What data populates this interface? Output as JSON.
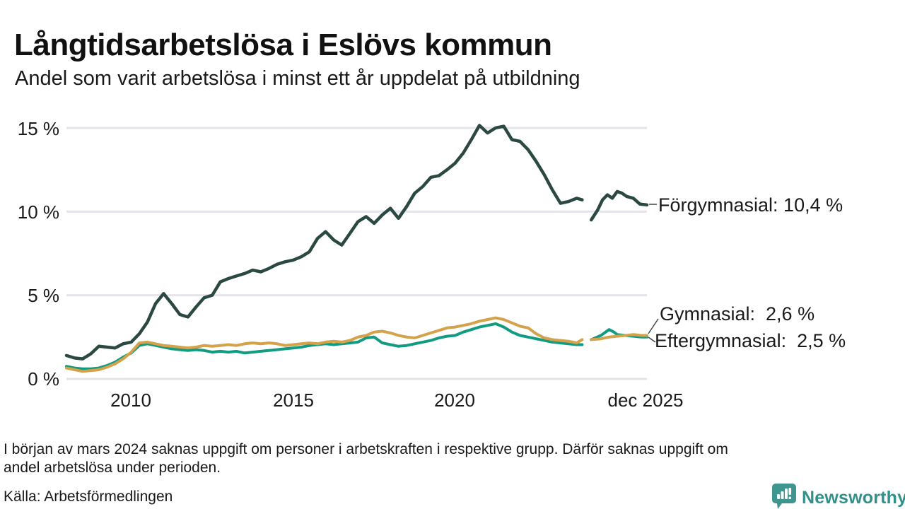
{
  "header": {
    "title": "Långtidsarbetslösa i Eslövs kommun",
    "subtitle": "Andel som varit arbetslösa i minst ett år uppdelat på utbildning"
  },
  "footer": {
    "note_line1": "I början av mars 2024 saknas uppgift om personer i arbetskraften i respektive grupp. Därför saknas uppgift om",
    "note_line2": "andel arbetslösa under perioden.",
    "source": "Källa: Arbetsförmedlingen"
  },
  "logo": {
    "name": "Newsworthy",
    "icon": "bar-chart-pin-icon",
    "icon_color": "#3f968f",
    "text_color": "#31908a"
  },
  "colors": {
    "background": "#ffffff",
    "text": "#1a1a1a",
    "gridline": "#e4e4ea",
    "connector": "#444444"
  },
  "chart_data": {
    "type": "line",
    "title": "Långtidsarbetslösa i Eslövs kommun",
    "subtitle": "Andel som varit arbetslösa i minst ett år uppdelat på utbildning",
    "xlabel": "",
    "ylabel": "",
    "xlim": [
      2008,
      2025.92
    ],
    "ylim": [
      0,
      16
    ],
    "grid": "horizontal",
    "legend_position": "end-of-line-labels",
    "gridline_color": "#e4e4ea",
    "yticks": [
      {
        "value": 15,
        "label": "15 %"
      },
      {
        "value": 10,
        "label": "10 %"
      },
      {
        "value": 5,
        "label": "5 %"
      },
      {
        "value": 0,
        "label": "0 %"
      }
    ],
    "xticks": [
      {
        "value": 2010,
        "label": "2010"
      },
      {
        "value": 2015,
        "label": "2015"
      },
      {
        "value": 2020,
        "label": "2020"
      },
      {
        "value": 2025.92,
        "label": "dec 2025"
      }
    ],
    "data_gap": {
      "from": 2023.95,
      "to": 2024.18,
      "reason": "uppgift saknas mars 2024"
    },
    "series": [
      {
        "id": "forgymnasial",
        "name": "Förgymnasial",
        "end_label": "Förgymnasial: 10,4 %",
        "end_value": 10.4,
        "color": "#2b4942",
        "width": 4.5,
        "points": [
          [
            2008.0,
            1.4
          ],
          [
            2008.25,
            1.25
          ],
          [
            2008.5,
            1.2
          ],
          [
            2008.75,
            1.5
          ],
          [
            2009.0,
            1.95
          ],
          [
            2009.25,
            1.9
          ],
          [
            2009.5,
            1.85
          ],
          [
            2009.75,
            2.1
          ],
          [
            2010.0,
            2.2
          ],
          [
            2010.25,
            2.7
          ],
          [
            2010.5,
            3.4
          ],
          [
            2010.75,
            4.5
          ],
          [
            2011.0,
            5.1
          ],
          [
            2011.25,
            4.5
          ],
          [
            2011.5,
            3.85
          ],
          [
            2011.75,
            3.7
          ],
          [
            2012.0,
            4.3
          ],
          [
            2012.25,
            4.85
          ],
          [
            2012.5,
            5.0
          ],
          [
            2012.75,
            5.8
          ],
          [
            2013.0,
            6.0
          ],
          [
            2013.25,
            6.15
          ],
          [
            2013.5,
            6.3
          ],
          [
            2013.75,
            6.5
          ],
          [
            2014.0,
            6.4
          ],
          [
            2014.25,
            6.6
          ],
          [
            2014.5,
            6.85
          ],
          [
            2014.75,
            7.0
          ],
          [
            2015.0,
            7.1
          ],
          [
            2015.25,
            7.3
          ],
          [
            2015.5,
            7.6
          ],
          [
            2015.75,
            8.4
          ],
          [
            2016.0,
            8.8
          ],
          [
            2016.25,
            8.3
          ],
          [
            2016.5,
            8.0
          ],
          [
            2016.75,
            8.7
          ],
          [
            2017.0,
            9.4
          ],
          [
            2017.25,
            9.7
          ],
          [
            2017.5,
            9.3
          ],
          [
            2017.75,
            9.8
          ],
          [
            2018.0,
            10.2
          ],
          [
            2018.25,
            9.6
          ],
          [
            2018.5,
            10.3
          ],
          [
            2018.75,
            11.1
          ],
          [
            2019.0,
            11.5
          ],
          [
            2019.25,
            12.05
          ],
          [
            2019.5,
            12.15
          ],
          [
            2019.75,
            12.5
          ],
          [
            2020.0,
            12.9
          ],
          [
            2020.25,
            13.5
          ],
          [
            2020.5,
            14.3
          ],
          [
            2020.75,
            15.15
          ],
          [
            2021.0,
            14.7
          ],
          [
            2021.25,
            15.0
          ],
          [
            2021.5,
            15.1
          ],
          [
            2021.75,
            14.3
          ],
          [
            2022.0,
            14.2
          ],
          [
            2022.25,
            13.7
          ],
          [
            2022.5,
            13.0
          ],
          [
            2022.75,
            12.2
          ],
          [
            2023.0,
            11.3
          ],
          [
            2023.25,
            10.5
          ],
          [
            2023.5,
            10.6
          ],
          [
            2023.75,
            10.8
          ],
          [
            2023.92,
            10.7
          ],
          [
            2024.0,
            null
          ],
          [
            2024.1,
            null
          ],
          [
            2024.2,
            9.5
          ],
          [
            2024.4,
            10.1
          ],
          [
            2024.55,
            10.7
          ],
          [
            2024.7,
            11.0
          ],
          [
            2024.85,
            10.8
          ],
          [
            2025.0,
            11.2
          ],
          [
            2025.15,
            11.1
          ],
          [
            2025.3,
            10.9
          ],
          [
            2025.5,
            10.8
          ],
          [
            2025.7,
            10.45
          ],
          [
            2025.92,
            10.4
          ]
        ]
      },
      {
        "id": "eftergymnasial",
        "name": "Eftergymnasial",
        "end_label": "Eftergymnasial:  2,5 %",
        "end_value": 2.5,
        "color": "#119b81",
        "width": 4,
        "points": [
          [
            2008.0,
            0.75
          ],
          [
            2008.25,
            0.65
          ],
          [
            2008.5,
            0.6
          ],
          [
            2008.75,
            0.6
          ],
          [
            2009.0,
            0.65
          ],
          [
            2009.25,
            0.8
          ],
          [
            2009.5,
            1.0
          ],
          [
            2009.75,
            1.3
          ],
          [
            2010.0,
            1.55
          ],
          [
            2010.25,
            2.0
          ],
          [
            2010.5,
            2.1
          ],
          [
            2010.75,
            2.0
          ],
          [
            2011.0,
            1.9
          ],
          [
            2011.25,
            1.8
          ],
          [
            2011.5,
            1.75
          ],
          [
            2011.75,
            1.7
          ],
          [
            2012.0,
            1.75
          ],
          [
            2012.25,
            1.7
          ],
          [
            2012.5,
            1.6
          ],
          [
            2012.75,
            1.65
          ],
          [
            2013.0,
            1.6
          ],
          [
            2013.25,
            1.65
          ],
          [
            2013.5,
            1.55
          ],
          [
            2013.75,
            1.6
          ],
          [
            2014.0,
            1.65
          ],
          [
            2014.25,
            1.7
          ],
          [
            2014.5,
            1.75
          ],
          [
            2014.75,
            1.8
          ],
          [
            2015.0,
            1.85
          ],
          [
            2015.25,
            1.9
          ],
          [
            2015.5,
            2.0
          ],
          [
            2015.75,
            2.05
          ],
          [
            2016.0,
            2.1
          ],
          [
            2016.25,
            2.05
          ],
          [
            2016.5,
            2.1
          ],
          [
            2016.75,
            2.15
          ],
          [
            2017.0,
            2.2
          ],
          [
            2017.25,
            2.45
          ],
          [
            2017.5,
            2.5
          ],
          [
            2017.75,
            2.15
          ],
          [
            2018.0,
            2.05
          ],
          [
            2018.25,
            1.95
          ],
          [
            2018.5,
            2.0
          ],
          [
            2018.75,
            2.1
          ],
          [
            2019.0,
            2.2
          ],
          [
            2019.25,
            2.3
          ],
          [
            2019.5,
            2.45
          ],
          [
            2019.75,
            2.55
          ],
          [
            2020.0,
            2.6
          ],
          [
            2020.25,
            2.8
          ],
          [
            2020.5,
            2.95
          ],
          [
            2020.75,
            3.1
          ],
          [
            2021.0,
            3.2
          ],
          [
            2021.25,
            3.3
          ],
          [
            2021.5,
            3.1
          ],
          [
            2021.75,
            2.8
          ],
          [
            2022.0,
            2.6
          ],
          [
            2022.25,
            2.5
          ],
          [
            2022.5,
            2.4
          ],
          [
            2022.75,
            2.3
          ],
          [
            2023.0,
            2.2
          ],
          [
            2023.25,
            2.15
          ],
          [
            2023.5,
            2.1
          ],
          [
            2023.75,
            2.05
          ],
          [
            2023.92,
            2.05
          ],
          [
            2024.0,
            null
          ],
          [
            2024.1,
            null
          ],
          [
            2024.2,
            2.35
          ],
          [
            2024.5,
            2.6
          ],
          [
            2024.75,
            2.95
          ],
          [
            2024.9,
            2.8
          ],
          [
            2025.0,
            2.65
          ],
          [
            2025.25,
            2.6
          ],
          [
            2025.5,
            2.55
          ],
          [
            2025.75,
            2.5
          ],
          [
            2025.92,
            2.5
          ]
        ]
      },
      {
        "id": "gymnasial",
        "name": "Gymnasial",
        "end_label": "Gymnasial:  2,6 %",
        "end_value": 2.6,
        "color": "#d3a24b",
        "width": 4,
        "points": [
          [
            2008.0,
            0.65
          ],
          [
            2008.25,
            0.55
          ],
          [
            2008.5,
            0.45
          ],
          [
            2008.75,
            0.5
          ],
          [
            2009.0,
            0.55
          ],
          [
            2009.25,
            0.7
          ],
          [
            2009.5,
            0.9
          ],
          [
            2009.75,
            1.2
          ],
          [
            2010.0,
            1.6
          ],
          [
            2010.25,
            2.15
          ],
          [
            2010.5,
            2.2
          ],
          [
            2010.75,
            2.1
          ],
          [
            2011.0,
            2.0
          ],
          [
            2011.25,
            1.95
          ],
          [
            2011.5,
            1.9
          ],
          [
            2011.75,
            1.85
          ],
          [
            2012.0,
            1.9
          ],
          [
            2012.25,
            2.0
          ],
          [
            2012.5,
            1.95
          ],
          [
            2012.75,
            2.0
          ],
          [
            2013.0,
            2.05
          ],
          [
            2013.25,
            2.0
          ],
          [
            2013.5,
            2.1
          ],
          [
            2013.75,
            2.15
          ],
          [
            2014.0,
            2.1
          ],
          [
            2014.25,
            2.15
          ],
          [
            2014.5,
            2.1
          ],
          [
            2014.75,
            2.0
          ],
          [
            2015.0,
            2.05
          ],
          [
            2015.25,
            2.1
          ],
          [
            2015.5,
            2.15
          ],
          [
            2015.75,
            2.1
          ],
          [
            2016.0,
            2.2
          ],
          [
            2016.25,
            2.25
          ],
          [
            2016.5,
            2.2
          ],
          [
            2016.75,
            2.3
          ],
          [
            2017.0,
            2.5
          ],
          [
            2017.25,
            2.6
          ],
          [
            2017.5,
            2.8
          ],
          [
            2017.75,
            2.85
          ],
          [
            2018.0,
            2.75
          ],
          [
            2018.25,
            2.6
          ],
          [
            2018.5,
            2.5
          ],
          [
            2018.75,
            2.45
          ],
          [
            2019.0,
            2.6
          ],
          [
            2019.25,
            2.75
          ],
          [
            2019.5,
            2.9
          ],
          [
            2019.75,
            3.05
          ],
          [
            2020.0,
            3.1
          ],
          [
            2020.25,
            3.2
          ],
          [
            2020.5,
            3.3
          ],
          [
            2020.75,
            3.45
          ],
          [
            2021.0,
            3.55
          ],
          [
            2021.25,
            3.65
          ],
          [
            2021.5,
            3.55
          ],
          [
            2021.75,
            3.35
          ],
          [
            2022.0,
            3.15
          ],
          [
            2022.25,
            3.05
          ],
          [
            2022.5,
            2.7
          ],
          [
            2022.75,
            2.45
          ],
          [
            2023.0,
            2.35
          ],
          [
            2023.25,
            2.3
          ],
          [
            2023.5,
            2.25
          ],
          [
            2023.75,
            2.15
          ],
          [
            2023.92,
            2.35
          ],
          [
            2024.0,
            null
          ],
          [
            2024.1,
            null
          ],
          [
            2024.2,
            2.35
          ],
          [
            2024.5,
            2.4
          ],
          [
            2024.75,
            2.5
          ],
          [
            2025.0,
            2.55
          ],
          [
            2025.25,
            2.6
          ],
          [
            2025.5,
            2.65
          ],
          [
            2025.75,
            2.6
          ],
          [
            2025.92,
            2.6
          ]
        ]
      }
    ]
  }
}
